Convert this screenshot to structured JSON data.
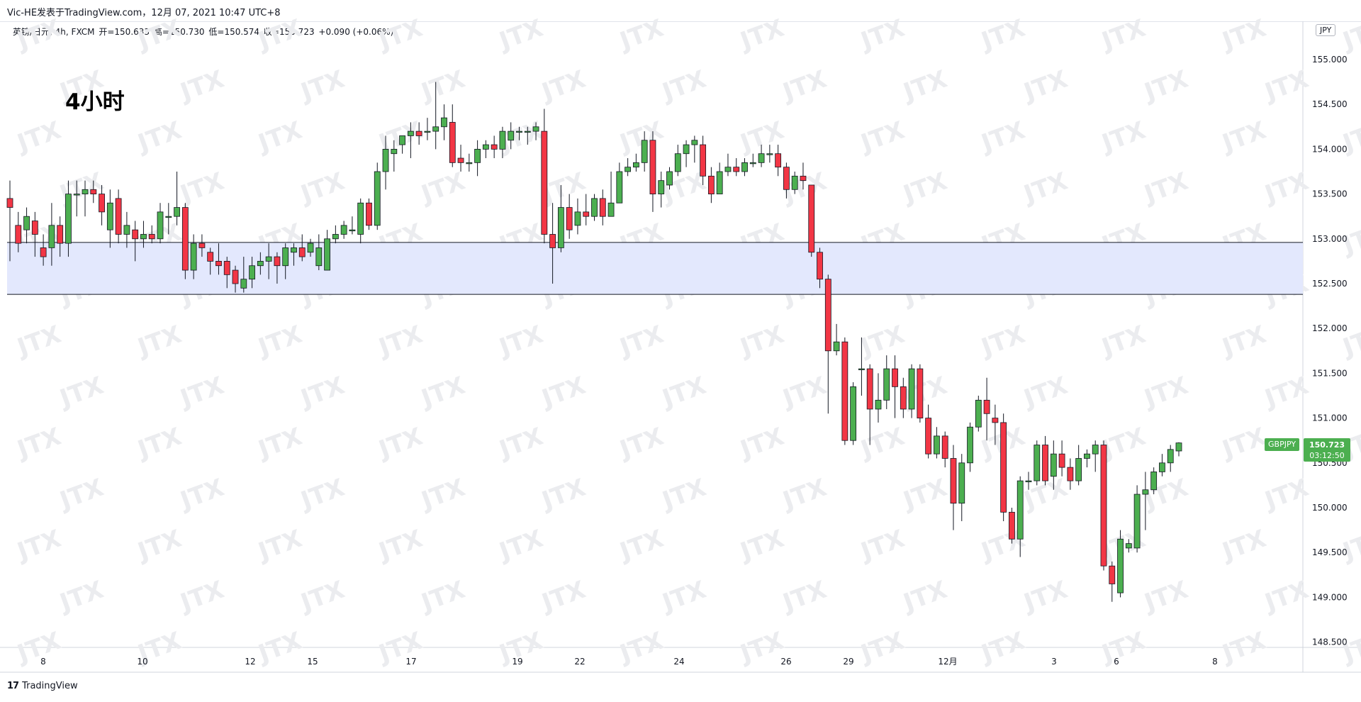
{
  "header": {
    "published": "Vic-HE发表于TradingView.com，12月 07, 2021 10:47 UTC+8"
  },
  "legend": {
    "symbol": "英镑/日元, 4h, FXCM",
    "open": "开=150.633",
    "high": "高=150.730",
    "low": "低=150.574",
    "close": "收=150.723",
    "change": "+0.090 (+0.06%)"
  },
  "overlay_title": "4小时",
  "currency_badge": "JPY",
  "symbol_tag": "GBPJPY",
  "price_tag": {
    "price": "150.723",
    "countdown": "03:12:50"
  },
  "brand": {
    "logo": "17",
    "name": "TradingView"
  },
  "watermark": "JTX",
  "colors": {
    "up": "#4caf50",
    "down": "#f23645",
    "zone": "#e3e8fd",
    "zone_line": "#131722"
  },
  "chart_data": {
    "type": "candlestick",
    "title": "",
    "y_ticks": [
      "155.000",
      "154.500",
      "154.000",
      "153.500",
      "153.000",
      "152.500",
      "152.000",
      "151.500",
      "151.000",
      "150.500",
      "150.000",
      "149.500",
      "149.000",
      "148.500"
    ],
    "ylim": [
      148.45,
      155.35
    ],
    "x_ticks": [
      "8",
      "10",
      "12",
      "15",
      "17",
      "19",
      "22",
      "24",
      "26",
      "29",
      "12月",
      "3",
      "6",
      "8"
    ],
    "support_zone": {
      "from": 152.38,
      "to": 152.96
    },
    "last_price": 150.723,
    "candles": [
      [
        153.45,
        153.35,
        153.65,
        152.75
      ],
      [
        153.15,
        152.95,
        153.3,
        152.85
      ],
      [
        153.1,
        153.25,
        153.35,
        152.95
      ],
      [
        153.2,
        153.05,
        153.3,
        152.8
      ],
      [
        152.9,
        152.8,
        153.05,
        152.7
      ],
      [
        152.9,
        153.15,
        153.4,
        152.7
      ],
      [
        153.15,
        152.95,
        153.25,
        152.8
      ],
      [
        152.95,
        153.5,
        153.65,
        152.8
      ],
      [
        153.5,
        153.5,
        153.65,
        153.25
      ],
      [
        153.5,
        153.55,
        153.65,
        153.25
      ],
      [
        153.55,
        153.5,
        153.65,
        153.4
      ],
      [
        153.5,
        153.3,
        153.6,
        153.15
      ],
      [
        153.1,
        153.4,
        153.55,
        152.9
      ],
      [
        153.45,
        153.05,
        153.55,
        152.95
      ],
      [
        153.05,
        153.15,
        153.3,
        152.9
      ],
      [
        153.1,
        153.0,
        153.2,
        152.75
      ],
      [
        153.0,
        153.05,
        153.2,
        152.9
      ],
      [
        153.05,
        153.0,
        153.15,
        152.95
      ],
      [
        153.0,
        153.3,
        153.4,
        152.95
      ],
      [
        153.25,
        153.25,
        153.4,
        153.05
      ],
      [
        153.25,
        153.35,
        153.75,
        153.15
      ],
      [
        153.35,
        152.65,
        153.4,
        152.55
      ],
      [
        152.65,
        152.95,
        153.05,
        152.55
      ],
      [
        152.95,
        152.9,
        153.05,
        152.8
      ],
      [
        152.85,
        152.75,
        152.9,
        152.6
      ],
      [
        152.75,
        152.7,
        152.95,
        152.6
      ],
      [
        152.75,
        152.6,
        152.8,
        152.45
      ],
      [
        152.65,
        152.5,
        152.7,
        152.4
      ],
      [
        152.45,
        152.55,
        152.8,
        152.4
      ],
      [
        152.55,
        152.7,
        152.8,
        152.45
      ],
      [
        152.7,
        152.75,
        152.85,
        152.6
      ],
      [
        152.75,
        152.8,
        152.95,
        152.55
      ],
      [
        152.8,
        152.7,
        152.85,
        152.5
      ],
      [
        152.7,
        152.9,
        152.95,
        152.55
      ],
      [
        152.85,
        152.9,
        152.95,
        152.7
      ],
      [
        152.9,
        152.8,
        153.05,
        152.75
      ],
      [
        152.85,
        152.95,
        153.0,
        152.8
      ],
      [
        152.7,
        152.9,
        153.05,
        152.65
      ],
      [
        152.65,
        153.0,
        153.1,
        152.65
      ],
      [
        153.0,
        153.05,
        153.15,
        152.95
      ],
      [
        153.05,
        153.15,
        153.2,
        153.0
      ],
      [
        153.1,
        153.1,
        153.25,
        153.05
      ],
      [
        153.05,
        153.4,
        153.45,
        152.95
      ],
      [
        153.4,
        153.15,
        153.45,
        153.1
      ],
      [
        153.15,
        153.75,
        153.85,
        153.1
      ],
      [
        153.75,
        154.0,
        154.15,
        153.55
      ],
      [
        153.95,
        154.0,
        154.1,
        153.75
      ],
      [
        154.05,
        154.15,
        154.15,
        153.95
      ],
      [
        154.15,
        154.2,
        154.3,
        153.9
      ],
      [
        154.2,
        154.15,
        154.3,
        154.05
      ],
      [
        154.2,
        154.2,
        154.35,
        154.1
      ],
      [
        154.2,
        154.25,
        154.75,
        154.0
      ],
      [
        154.25,
        154.35,
        154.5,
        154.1
      ],
      [
        154.3,
        153.85,
        154.5,
        153.8
      ],
      [
        153.9,
        153.85,
        154.05,
        153.75
      ],
      [
        153.85,
        153.85,
        153.95,
        153.75
      ],
      [
        153.85,
        154.0,
        154.1,
        153.7
      ],
      [
        154.0,
        154.05,
        154.1,
        153.9
      ],
      [
        154.05,
        154.0,
        154.15,
        153.9
      ],
      [
        154.0,
        154.2,
        154.25,
        153.9
      ],
      [
        154.1,
        154.2,
        154.3,
        154.0
      ],
      [
        154.2,
        154.2,
        154.25,
        154.1
      ],
      [
        154.2,
        154.2,
        154.25,
        154.05
      ],
      [
        154.2,
        154.25,
        154.3,
        154.1
      ],
      [
        154.2,
        153.05,
        154.45,
        152.95
      ],
      [
        153.05,
        152.9,
        153.4,
        152.5
      ],
      [
        152.9,
        153.35,
        153.6,
        152.85
      ],
      [
        153.35,
        153.1,
        153.5,
        153.0
      ],
      [
        153.15,
        153.3,
        153.45,
        153.05
      ],
      [
        153.3,
        153.25,
        153.5,
        153.15
      ],
      [
        153.25,
        153.45,
        153.5,
        153.2
      ],
      [
        153.45,
        153.25,
        153.55,
        153.15
      ],
      [
        153.25,
        153.4,
        153.75,
        153.25
      ],
      [
        153.4,
        153.75,
        153.85,
        153.4
      ],
      [
        153.75,
        153.8,
        153.9,
        153.7
      ],
      [
        153.8,
        153.85,
        153.95,
        153.75
      ],
      [
        153.85,
        154.1,
        154.2,
        153.75
      ],
      [
        154.1,
        153.5,
        154.2,
        153.3
      ],
      [
        153.5,
        153.65,
        153.75,
        153.35
      ],
      [
        153.6,
        153.75,
        153.8,
        153.55
      ],
      [
        153.75,
        153.95,
        154.05,
        153.7
      ],
      [
        153.95,
        154.05,
        154.1,
        153.8
      ],
      [
        154.05,
        154.1,
        154.15,
        153.85
      ],
      [
        154.05,
        153.7,
        154.15,
        153.6
      ],
      [
        153.7,
        153.5,
        153.8,
        153.4
      ],
      [
        153.5,
        153.75,
        153.85,
        153.5
      ],
      [
        153.75,
        153.8,
        153.95,
        153.7
      ],
      [
        153.8,
        153.75,
        153.9,
        153.7
      ],
      [
        153.75,
        153.85,
        153.9,
        153.7
      ],
      [
        153.85,
        153.85,
        153.95,
        153.8
      ],
      [
        153.85,
        153.95,
        154.05,
        153.8
      ],
      [
        153.95,
        153.95,
        154.05,
        153.85
      ],
      [
        153.95,
        153.8,
        154.05,
        153.7
      ],
      [
        153.8,
        153.55,
        153.85,
        153.45
      ],
      [
        153.55,
        153.7,
        153.75,
        153.5
      ],
      [
        153.7,
        153.65,
        153.85,
        153.55
      ],
      [
        153.6,
        152.85,
        153.6,
        152.8
      ],
      [
        152.85,
        152.55,
        152.9,
        152.45
      ],
      [
        152.55,
        151.75,
        152.6,
        151.05
      ],
      [
        151.75,
        151.85,
        152.05,
        151.7
      ],
      [
        151.85,
        150.75,
        151.9,
        150.7
      ],
      [
        150.75,
        151.35,
        151.4,
        150.7
      ],
      [
        151.55,
        151.55,
        151.9,
        151.25
      ],
      [
        151.55,
        151.1,
        151.6,
        150.7
      ],
      [
        151.1,
        151.2,
        151.5,
        150.95
      ],
      [
        151.2,
        151.55,
        151.7,
        151.1
      ],
      [
        151.55,
        151.35,
        151.7,
        151.0
      ],
      [
        151.35,
        151.1,
        151.45,
        151.0
      ],
      [
        151.1,
        151.55,
        151.6,
        151.0
      ],
      [
        151.55,
        151.0,
        151.6,
        150.95
      ],
      [
        151.0,
        150.6,
        151.15,
        150.55
      ],
      [
        150.6,
        150.8,
        150.9,
        150.55
      ],
      [
        150.8,
        150.55,
        150.85,
        150.45
      ],
      [
        150.55,
        150.05,
        150.7,
        149.75
      ],
      [
        150.05,
        150.5,
        150.6,
        149.85
      ],
      [
        150.5,
        150.9,
        150.95,
        150.4
      ],
      [
        150.9,
        151.2,
        151.25,
        150.85
      ],
      [
        151.2,
        151.05,
        151.45,
        150.75
      ],
      [
        151.0,
        150.95,
        151.15,
        150.7
      ],
      [
        150.95,
        149.95,
        151.05,
        149.85
      ],
      [
        149.95,
        149.65,
        150.0,
        149.6
      ],
      [
        149.65,
        150.3,
        150.35,
        149.45
      ],
      [
        150.3,
        150.3,
        150.4,
        150.2
      ],
      [
        150.3,
        150.7,
        150.75,
        150.25
      ],
      [
        150.7,
        150.3,
        150.8,
        150.25
      ],
      [
        150.35,
        150.6,
        150.75,
        150.2
      ],
      [
        150.6,
        150.45,
        150.75,
        150.35
      ],
      [
        150.45,
        150.3,
        150.55,
        150.2
      ],
      [
        150.3,
        150.55,
        150.7,
        150.25
      ],
      [
        150.55,
        150.6,
        150.65,
        150.45
      ],
      [
        150.6,
        150.7,
        150.75,
        150.4
      ],
      [
        150.7,
        149.35,
        150.75,
        149.3
      ],
      [
        149.35,
        149.15,
        149.4,
        148.95
      ],
      [
        149.05,
        149.65,
        149.75,
        149.0
      ],
      [
        149.55,
        149.6,
        149.65,
        149.5
      ],
      [
        149.55,
        150.15,
        150.25,
        149.5
      ],
      [
        150.15,
        150.2,
        150.4,
        149.75
      ],
      [
        150.2,
        150.4,
        150.45,
        150.15
      ],
      [
        150.4,
        150.5,
        150.6,
        150.35
      ],
      [
        150.5,
        150.65,
        150.7,
        150.4
      ],
      [
        150.633,
        150.723,
        150.73,
        150.574
      ]
    ]
  }
}
